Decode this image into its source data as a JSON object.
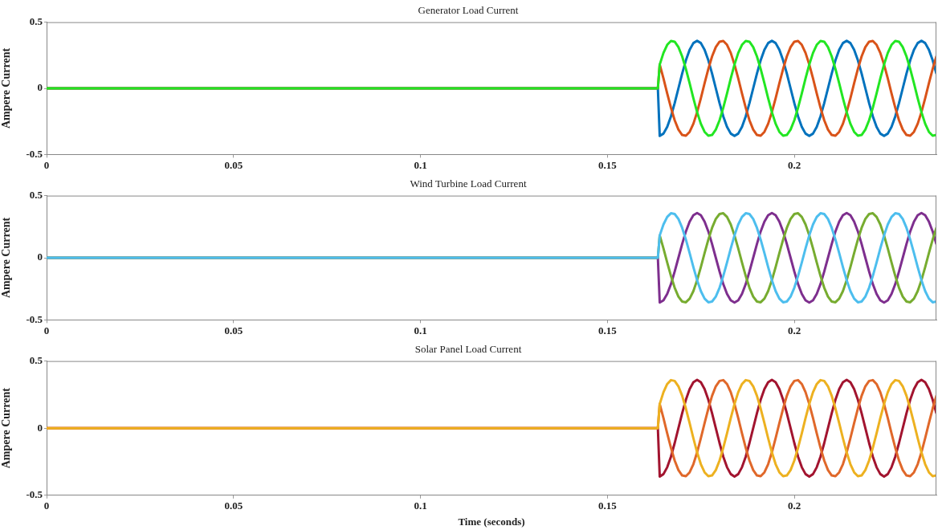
{
  "chart_data": [
    {
      "type": "line",
      "title": "Generator Load Current",
      "ylabel": "Ampere Current",
      "marker": "none",
      "line_style": "solid",
      "x": [
        0,
        0.1635,
        0.164,
        0.165,
        0.166,
        0.167,
        0.168,
        0.169,
        0.17,
        0.171,
        0.172,
        0.173,
        0.174,
        0.175,
        0.176,
        0.177,
        0.178,
        0.179,
        0.18,
        0.181,
        0.182,
        0.183,
        0.184,
        0.185,
        0.186,
        0.187,
        0.188,
        0.189,
        0.19,
        0.191,
        0.192,
        0.193,
        0.194,
        0.195,
        0.196,
        0.197,
        0.198,
        0.199,
        0.2,
        0.201,
        0.202,
        0.203,
        0.204,
        0.205,
        0.206,
        0.207,
        0.208,
        0.209,
        0.21,
        0.211,
        0.212,
        0.213,
        0.214,
        0.215,
        0.216,
        0.217,
        0.218,
        0.219,
        0.22,
        0.221,
        0.222,
        0.223,
        0.224,
        0.225,
        0.226,
        0.227,
        0.228,
        0.229,
        0.23,
        0.231,
        0.232,
        0.233,
        0.234,
        0.235,
        0.236,
        0.237,
        0.238
      ],
      "series": [
        {
          "color": "#0072bd",
          "values": [
            0,
            0,
            -0.36,
            -0.342,
            -0.291,
            -0.212,
            -0.111,
            0,
            0.111,
            0.212,
            0.291,
            0.342,
            0.36,
            0.342,
            0.291,
            0.212,
            0.111,
            0,
            -0.111,
            -0.212,
            -0.291,
            -0.342,
            -0.36,
            -0.342,
            -0.291,
            -0.212,
            -0.111,
            0,
            0.111,
            0.212,
            0.291,
            0.342,
            0.36,
            0.342,
            0.291,
            0.212,
            0.111,
            0,
            -0.111,
            -0.212,
            -0.291,
            -0.342,
            -0.36,
            -0.342,
            -0.291,
            -0.212,
            -0.111,
            0,
            0.111,
            0.212,
            0.291,
            0.342,
            0.36,
            0.342,
            0.291,
            0.212,
            0.111,
            0,
            -0.111,
            -0.212,
            -0.291,
            -0.342,
            -0.36,
            -0.342,
            -0.291,
            -0.212,
            -0.111,
            0,
            0.111,
            0.212,
            0.291,
            0.342,
            0.36,
            0.342,
            0.291,
            0.212,
            0.111
          ]
        },
        {
          "color": "#d95319",
          "values": [
            0,
            0,
            0.18,
            0.075,
            -0.038,
            -0.146,
            -0.241,
            -0.312,
            -0.352,
            -0.358,
            -0.329,
            -0.268,
            -0.18,
            -0.075,
            0.038,
            0.146,
            0.241,
            0.312,
            0.352,
            0.358,
            0.329,
            0.268,
            0.18,
            0.075,
            -0.038,
            -0.146,
            -0.241,
            -0.312,
            -0.352,
            -0.358,
            -0.329,
            -0.268,
            -0.18,
            -0.075,
            0.038,
            0.146,
            0.241,
            0.312,
            0.352,
            0.358,
            0.329,
            0.268,
            0.18,
            0.075,
            -0.038,
            -0.146,
            -0.241,
            -0.312,
            -0.352,
            -0.358,
            -0.329,
            -0.268,
            -0.18,
            -0.075,
            0.038,
            0.146,
            0.241,
            0.312,
            0.352,
            0.358,
            0.329,
            0.268,
            0.18,
            0.075,
            -0.038,
            -0.146,
            -0.241,
            -0.312,
            -0.352,
            -0.358,
            -0.329,
            -0.268,
            -0.18,
            -0.075,
            0.038,
            0.146,
            0.241
          ]
        },
        {
          "color": "#22e622",
          "values": [
            0,
            0,
            0.18,
            0.268,
            0.329,
            0.358,
            0.352,
            0.312,
            0.241,
            0.146,
            0.038,
            -0.075,
            -0.18,
            -0.268,
            -0.329,
            -0.358,
            -0.352,
            -0.312,
            -0.241,
            -0.146,
            -0.038,
            0.075,
            0.18,
            0.268,
            0.329,
            0.358,
            0.352,
            0.312,
            0.241,
            0.146,
            0.038,
            -0.075,
            -0.18,
            -0.268,
            -0.329,
            -0.358,
            -0.352,
            -0.312,
            -0.241,
            -0.146,
            -0.038,
            0.075,
            0.18,
            0.268,
            0.329,
            0.358,
            0.352,
            0.312,
            0.241,
            0.146,
            0.038,
            -0.075,
            -0.18,
            -0.268,
            -0.329,
            -0.358,
            -0.352,
            -0.312,
            -0.241,
            -0.146,
            -0.038,
            0.075,
            0.18,
            0.268,
            0.329,
            0.358,
            0.352,
            0.312,
            0.241,
            0.146,
            0.038,
            -0.075,
            -0.18,
            -0.268,
            -0.329,
            -0.358,
            -0.352
          ]
        }
      ],
      "xlim": [
        0,
        0.238
      ],
      "ylim": [
        -0.5,
        0.5
      ],
      "xticks": [
        0,
        0.05,
        0.1,
        0.15,
        0.2
      ],
      "yticks": [
        -0.5,
        0,
        0.5
      ],
      "grid": false
    },
    {
      "type": "line",
      "title": "Wind Turbine Load Current",
      "ylabel": "Ampere Current",
      "marker": "none",
      "line_style": "solid",
      "x": [
        0,
        0.1635,
        0.164,
        0.165,
        0.166,
        0.167,
        0.168,
        0.169,
        0.17,
        0.171,
        0.172,
        0.173,
        0.174,
        0.175,
        0.176,
        0.177,
        0.178,
        0.179,
        0.18,
        0.181,
        0.182,
        0.183,
        0.184,
        0.185,
        0.186,
        0.187,
        0.188,
        0.189,
        0.19,
        0.191,
        0.192,
        0.193,
        0.194,
        0.195,
        0.196,
        0.197,
        0.198,
        0.199,
        0.2,
        0.201,
        0.202,
        0.203,
        0.204,
        0.205,
        0.206,
        0.207,
        0.208,
        0.209,
        0.21,
        0.211,
        0.212,
        0.213,
        0.214,
        0.215,
        0.216,
        0.217,
        0.218,
        0.219,
        0.22,
        0.221,
        0.222,
        0.223,
        0.224,
        0.225,
        0.226,
        0.227,
        0.228,
        0.229,
        0.23,
        0.231,
        0.232,
        0.233,
        0.234,
        0.235,
        0.236,
        0.237,
        0.238
      ],
      "series": [
        {
          "color": "#7e2f8e",
          "values": [
            0,
            0,
            -0.36,
            -0.342,
            -0.291,
            -0.212,
            -0.111,
            0,
            0.111,
            0.212,
            0.291,
            0.342,
            0.36,
            0.342,
            0.291,
            0.212,
            0.111,
            0,
            -0.111,
            -0.212,
            -0.291,
            -0.342,
            -0.36,
            -0.342,
            -0.291,
            -0.212,
            -0.111,
            0,
            0.111,
            0.212,
            0.291,
            0.342,
            0.36,
            0.342,
            0.291,
            0.212,
            0.111,
            0,
            -0.111,
            -0.212,
            -0.291,
            -0.342,
            -0.36,
            -0.342,
            -0.291,
            -0.212,
            -0.111,
            0,
            0.111,
            0.212,
            0.291,
            0.342,
            0.36,
            0.342,
            0.291,
            0.212,
            0.111,
            0,
            -0.111,
            -0.212,
            -0.291,
            -0.342,
            -0.36,
            -0.342,
            -0.291,
            -0.212,
            -0.111,
            0,
            0.111,
            0.212,
            0.291,
            0.342,
            0.36,
            0.342,
            0.291,
            0.212,
            0.111
          ]
        },
        {
          "color": "#77ac30",
          "values": [
            0,
            0,
            0.18,
            0.075,
            -0.038,
            -0.146,
            -0.241,
            -0.312,
            -0.352,
            -0.358,
            -0.329,
            -0.268,
            -0.18,
            -0.075,
            0.038,
            0.146,
            0.241,
            0.312,
            0.352,
            0.358,
            0.329,
            0.268,
            0.18,
            0.075,
            -0.038,
            -0.146,
            -0.241,
            -0.312,
            -0.352,
            -0.358,
            -0.329,
            -0.268,
            -0.18,
            -0.075,
            0.038,
            0.146,
            0.241,
            0.312,
            0.352,
            0.358,
            0.329,
            0.268,
            0.18,
            0.075,
            -0.038,
            -0.146,
            -0.241,
            -0.312,
            -0.352,
            -0.358,
            -0.329,
            -0.268,
            -0.18,
            -0.075,
            0.038,
            0.146,
            0.241,
            0.312,
            0.352,
            0.358,
            0.329,
            0.268,
            0.18,
            0.075,
            -0.038,
            -0.146,
            -0.241,
            -0.312,
            -0.352,
            -0.358,
            -0.329,
            -0.268,
            -0.18,
            -0.075,
            0.038,
            0.146,
            0.241
          ]
        },
        {
          "color": "#4dbeee",
          "values": [
            0,
            0,
            0.18,
            0.268,
            0.329,
            0.358,
            0.352,
            0.312,
            0.241,
            0.146,
            0.038,
            -0.075,
            -0.18,
            -0.268,
            -0.329,
            -0.358,
            -0.352,
            -0.312,
            -0.241,
            -0.146,
            -0.038,
            0.075,
            0.18,
            0.268,
            0.329,
            0.358,
            0.352,
            0.312,
            0.241,
            0.146,
            0.038,
            -0.075,
            -0.18,
            -0.268,
            -0.329,
            -0.358,
            -0.352,
            -0.312,
            -0.241,
            -0.146,
            -0.038,
            0.075,
            0.18,
            0.268,
            0.329,
            0.358,
            0.352,
            0.312,
            0.241,
            0.146,
            0.038,
            -0.075,
            -0.18,
            -0.268,
            -0.329,
            -0.358,
            -0.352,
            -0.312,
            -0.241,
            -0.146,
            -0.038,
            0.075,
            0.18,
            0.268,
            0.329,
            0.358,
            0.352,
            0.312,
            0.241,
            0.146,
            0.038,
            -0.075,
            -0.18,
            -0.268,
            -0.329,
            -0.358,
            -0.352
          ]
        }
      ],
      "xlim": [
        0,
        0.238
      ],
      "ylim": [
        -0.5,
        0.5
      ],
      "xticks": [
        0,
        0.05,
        0.1,
        0.15,
        0.2
      ],
      "yticks": [
        -0.5,
        0,
        0.5
      ],
      "grid": false
    },
    {
      "type": "line",
      "title": "Solar Panel Load Current",
      "xlabel": "Time (seconds)",
      "ylabel": "Ampere Current",
      "marker": "none",
      "line_style": "solid",
      "x": [
        0,
        0.1635,
        0.164,
        0.165,
        0.166,
        0.167,
        0.168,
        0.169,
        0.17,
        0.171,
        0.172,
        0.173,
        0.174,
        0.175,
        0.176,
        0.177,
        0.178,
        0.179,
        0.18,
        0.181,
        0.182,
        0.183,
        0.184,
        0.185,
        0.186,
        0.187,
        0.188,
        0.189,
        0.19,
        0.191,
        0.192,
        0.193,
        0.194,
        0.195,
        0.196,
        0.197,
        0.198,
        0.199,
        0.2,
        0.201,
        0.202,
        0.203,
        0.204,
        0.205,
        0.206,
        0.207,
        0.208,
        0.209,
        0.21,
        0.211,
        0.212,
        0.213,
        0.214,
        0.215,
        0.216,
        0.217,
        0.218,
        0.219,
        0.22,
        0.221,
        0.222,
        0.223,
        0.224,
        0.225,
        0.226,
        0.227,
        0.228,
        0.229,
        0.23,
        0.231,
        0.232,
        0.233,
        0.234,
        0.235,
        0.236,
        0.237,
        0.238
      ],
      "series": [
        {
          "color": "#a2142f",
          "values": [
            0,
            0,
            -0.36,
            -0.342,
            -0.291,
            -0.212,
            -0.111,
            0,
            0.111,
            0.212,
            0.291,
            0.342,
            0.36,
            0.342,
            0.291,
            0.212,
            0.111,
            0,
            -0.111,
            -0.212,
            -0.291,
            -0.342,
            -0.36,
            -0.342,
            -0.291,
            -0.212,
            -0.111,
            0,
            0.111,
            0.212,
            0.291,
            0.342,
            0.36,
            0.342,
            0.291,
            0.212,
            0.111,
            0,
            -0.111,
            -0.212,
            -0.291,
            -0.342,
            -0.36,
            -0.342,
            -0.291,
            -0.212,
            -0.111,
            0,
            0.111,
            0.212,
            0.291,
            0.342,
            0.36,
            0.342,
            0.291,
            0.212,
            0.111,
            0,
            -0.111,
            -0.212,
            -0.291,
            -0.342,
            -0.36,
            -0.342,
            -0.291,
            -0.212,
            -0.111,
            0,
            0.111,
            0.212,
            0.291,
            0.342,
            0.36,
            0.342,
            0.291,
            0.212,
            0.111
          ]
        },
        {
          "color": "#e0682a",
          "values": [
            0,
            0,
            0.18,
            0.075,
            -0.038,
            -0.146,
            -0.241,
            -0.312,
            -0.352,
            -0.358,
            -0.329,
            -0.268,
            -0.18,
            -0.075,
            0.038,
            0.146,
            0.241,
            0.312,
            0.352,
            0.358,
            0.329,
            0.268,
            0.18,
            0.075,
            -0.038,
            -0.146,
            -0.241,
            -0.312,
            -0.352,
            -0.358,
            -0.329,
            -0.268,
            -0.18,
            -0.075,
            0.038,
            0.146,
            0.241,
            0.312,
            0.352,
            0.358,
            0.329,
            0.268,
            0.18,
            0.075,
            -0.038,
            -0.146,
            -0.241,
            -0.312,
            -0.352,
            -0.358,
            -0.329,
            -0.268,
            -0.18,
            -0.075,
            0.038,
            0.146,
            0.241,
            0.312,
            0.352,
            0.358,
            0.329,
            0.268,
            0.18,
            0.075,
            -0.038,
            -0.146,
            -0.241,
            -0.312,
            -0.352,
            -0.358,
            -0.329,
            -0.268,
            -0.18,
            -0.075,
            0.038,
            0.146,
            0.241
          ]
        },
        {
          "color": "#edb120",
          "values": [
            0,
            0,
            0.18,
            0.268,
            0.329,
            0.358,
            0.352,
            0.312,
            0.241,
            0.146,
            0.038,
            -0.075,
            -0.18,
            -0.268,
            -0.329,
            -0.358,
            -0.352,
            -0.312,
            -0.241,
            -0.146,
            -0.038,
            0.075,
            0.18,
            0.268,
            0.329,
            0.358,
            0.352,
            0.312,
            0.241,
            0.146,
            0.038,
            -0.075,
            -0.18,
            -0.268,
            -0.329,
            -0.358,
            -0.352,
            -0.312,
            -0.241,
            -0.146,
            -0.038,
            0.075,
            0.18,
            0.268,
            0.329,
            0.358,
            0.352,
            0.312,
            0.241,
            0.146,
            0.038,
            -0.075,
            -0.18,
            -0.268,
            -0.329,
            -0.358,
            -0.352,
            -0.312,
            -0.241,
            -0.146,
            -0.038,
            0.075,
            0.18,
            0.268,
            0.329,
            0.358,
            0.352,
            0.312,
            0.241,
            0.146,
            0.038,
            -0.075,
            -0.18,
            -0.268,
            -0.329,
            -0.358,
            -0.352
          ]
        }
      ],
      "xlim": [
        0,
        0.238
      ],
      "ylim": [
        -0.5,
        0.5
      ],
      "xticks": [
        0,
        0.05,
        0.1,
        0.15,
        0.2
      ],
      "yticks": [
        -0.5,
        0,
        0.5
      ],
      "grid": false
    }
  ]
}
